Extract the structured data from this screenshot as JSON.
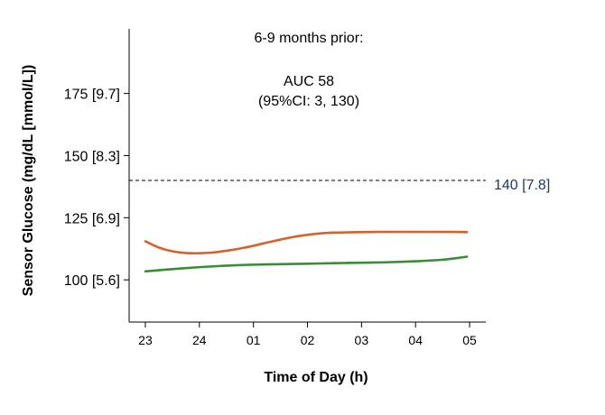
{
  "chart_data": {
    "type": "line",
    "title": "",
    "xlabel": "Time of Day (h)",
    "ylabel": "Sensor Glucose (mg/dL [mmol/L])",
    "x_ticks": [
      "23",
      "24",
      "01",
      "02",
      "03",
      "04",
      "05"
    ],
    "y_ticks": [
      {
        "value": 100,
        "label": "100 [5.6]"
      },
      {
        "value": 125,
        "label": "125 [6.9]"
      },
      {
        "value": 150,
        "label": "150 [8.3]"
      },
      {
        "value": 175,
        "label": "175 [9.7]"
      }
    ],
    "xlim": [
      22.7,
      29.3
    ],
    "ylim": [
      83,
      201
    ],
    "grid": false,
    "reference_line": {
      "y": 140,
      "label": "140 [7.8]",
      "style": "dashed",
      "color": "#000000",
      "label_color": "#1f3864"
    },
    "annotation": {
      "line1": "6-9 months prior:",
      "line2": "AUC 58",
      "line3": "(95%CI: 3, 130)"
    },
    "series": [
      {
        "color": "#d4622b",
        "x": [
          23.0,
          23.25,
          23.5,
          23.75,
          24.0,
          24.25,
          24.5,
          24.75,
          25.0,
          25.25,
          25.5,
          25.75,
          26.0,
          26.25,
          26.5,
          26.75,
          27.0,
          27.5,
          28.0,
          28.5,
          28.95
        ],
        "values": [
          115.5,
          113.0,
          111.5,
          110.8,
          110.7,
          111.0,
          111.7,
          112.6,
          113.7,
          115.0,
          116.2,
          117.3,
          118.1,
          118.7,
          119.0,
          119.1,
          119.2,
          119.3,
          119.3,
          119.3,
          119.2
        ]
      },
      {
        "color": "#3a8c3a",
        "x": [
          23.0,
          23.5,
          24.0,
          24.5,
          25.0,
          25.5,
          26.0,
          26.5,
          27.0,
          27.5,
          28.0,
          28.5,
          28.95
        ],
        "values": [
          103.4,
          104.3,
          105.1,
          105.7,
          106.1,
          106.3,
          106.5,
          106.7,
          106.9,
          107.1,
          107.5,
          108.1,
          109.3
        ]
      }
    ]
  }
}
